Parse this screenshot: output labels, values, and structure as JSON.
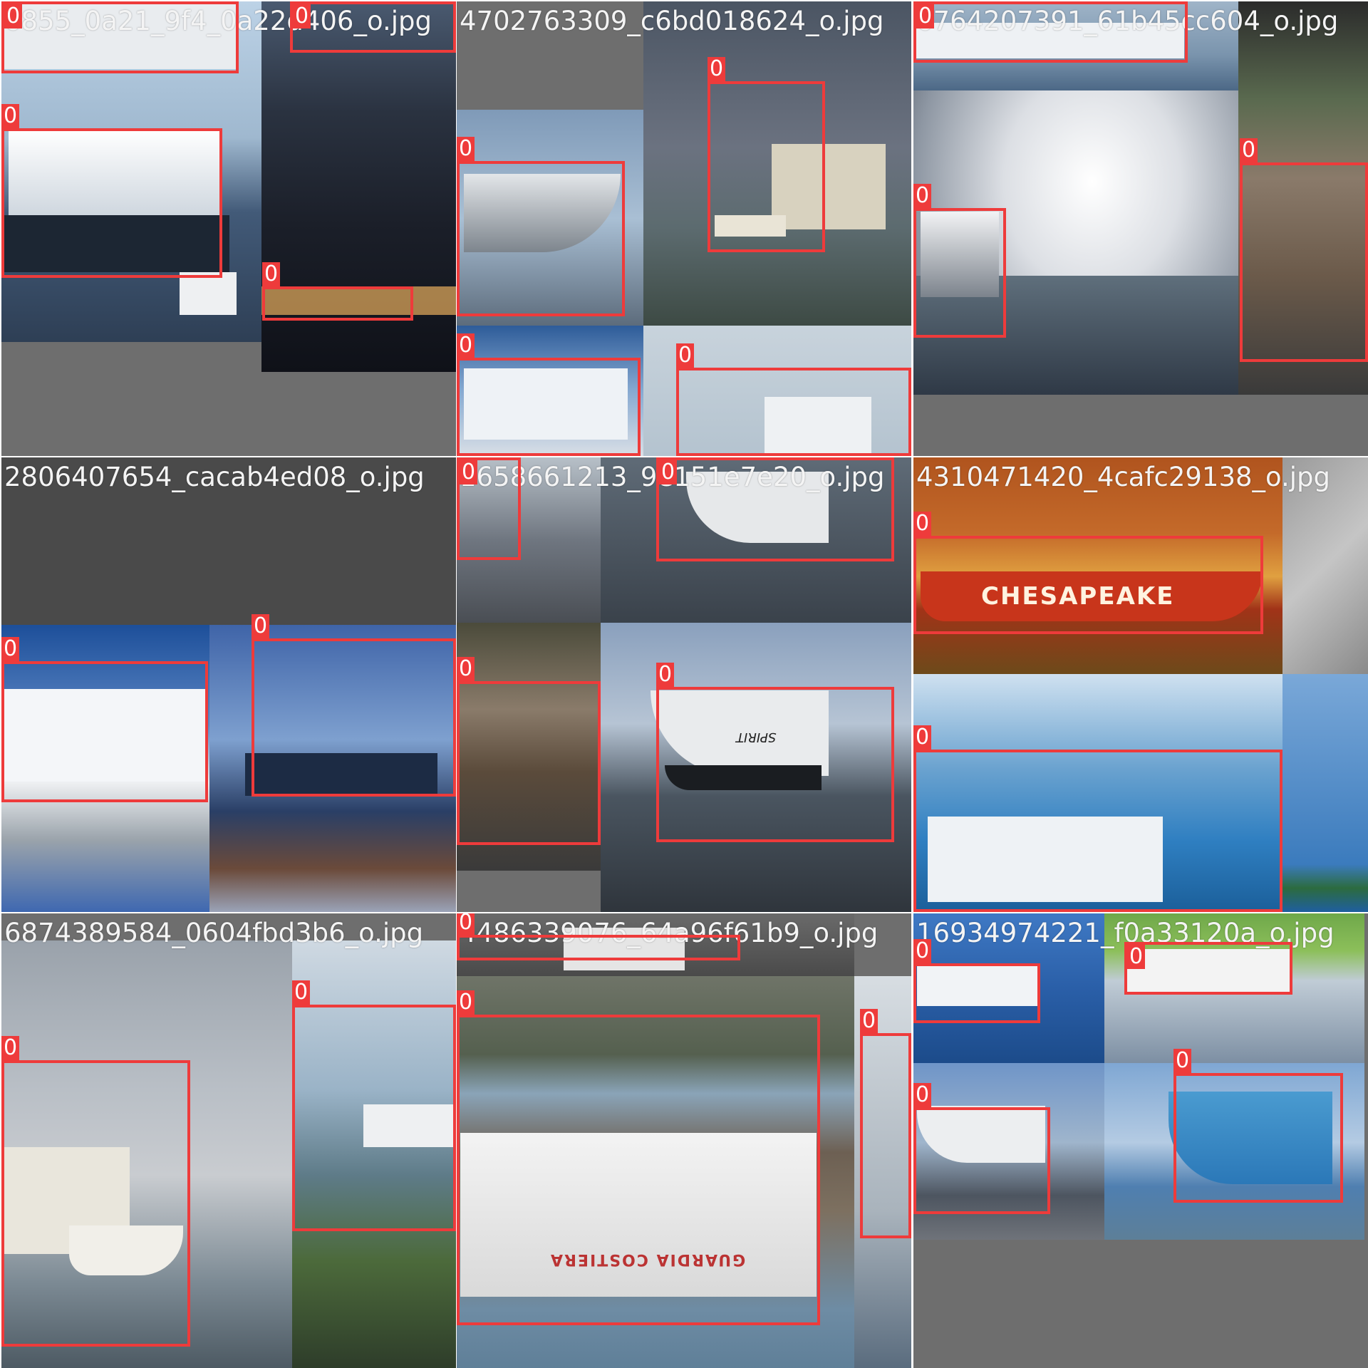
{
  "grid": {
    "background": "#6e6e6e",
    "box_color": "#ee3b3b",
    "tiles": [
      {
        "filename": "6855_0a21_9f4_0a22d406_o.jpg",
        "class_label": "0"
      },
      {
        "filename": "4702763309_c6bd018624_o.jpg",
        "class_label": "0"
      },
      {
        "filename": "6764207391_61b45cc604_o.jpg",
        "class_label": "0"
      },
      {
        "filename": "2806407654_cacab4ed08_o.jpg",
        "class_label": "0"
      },
      {
        "filename": "1658661213_9e151e7e20_o.jpg",
        "class_label": "0"
      },
      {
        "filename": "4310471420_4cafc29138_o.jpg",
        "class_label": "0"
      },
      {
        "filename": "6874389584_0604fbd3b6_o.jpg",
        "class_label": "0"
      },
      {
        "filename": "4486339076_64a96f61b9_o.jpg",
        "class_label": "0"
      },
      {
        "filename": "16934974221_f0a33120a_o.jpg",
        "class_label": "0"
      }
    ]
  },
  "overlay_text": {
    "chesapeake": "CHESAPEAKE",
    "guardia": "GUARDIA COSTIERA",
    "spirit": "SPIRIT"
  }
}
